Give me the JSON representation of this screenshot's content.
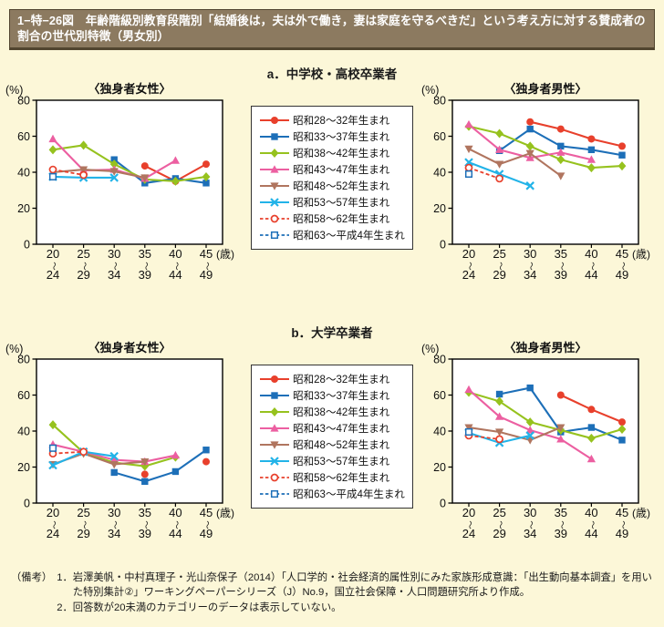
{
  "title": "1−特−26図　年齢階級別教育段階別「結婚後は，夫は外で働き，妻は家庭を守るべきだ」という考え方に対する賛成者の割合の世代別特徴（男女別）",
  "sections": [
    {
      "header": "a．中学校・高校卒業者"
    },
    {
      "header": "b．大学卒業者"
    }
  ],
  "legend": {
    "entries": [
      {
        "label": "昭和28〜32年生まれ",
        "color": "#e8402c",
        "marker": "circle",
        "dashed": false
      },
      {
        "label": "昭和33〜37年生まれ",
        "color": "#1d6fb8",
        "marker": "square",
        "dashed": false
      },
      {
        "label": "昭和38〜42年生まれ",
        "color": "#96c21e",
        "marker": "diamond",
        "dashed": false
      },
      {
        "label": "昭和43〜47年生まれ",
        "color": "#ec5fa1",
        "marker": "triangle-up",
        "dashed": false
      },
      {
        "label": "昭和48〜52年生まれ",
        "color": "#b0755f",
        "marker": "triangle-down",
        "dashed": false
      },
      {
        "label": "昭和53〜57年生まれ",
        "color": "#22b3e8",
        "marker": "x",
        "dashed": false
      },
      {
        "label": "昭和58〜62年生まれ",
        "color": "#e8402c",
        "marker": "circle-open",
        "dashed": true
      },
      {
        "label": "昭和63〜平成4年生まれ",
        "color": "#1d6fb8",
        "marker": "square-open",
        "dashed": true
      }
    ]
  },
  "axis": {
    "percent_label": "(%)",
    "age_unit": "(歳)",
    "yticks": [
      0,
      20,
      40,
      60,
      80
    ],
    "ylim": [
      0,
      80
    ]
  },
  "chart_data": [
    {
      "type": "line",
      "title": "〈独身者女性〉",
      "section": "a．中学校・高校卒業者",
      "ylabel": "(%)",
      "ylim": [
        0,
        80
      ],
      "yticks": [
        0,
        20,
        40,
        60,
        80
      ],
      "categories": [
        "20〜24",
        "25〜29",
        "30〜34",
        "35〜39",
        "40〜44",
        "45〜49"
      ],
      "series": [
        {
          "name": "昭和28〜32年生まれ",
          "values": [
            null,
            null,
            null,
            43.5,
            35,
            44.5
          ]
        },
        {
          "name": "昭和33〜37年生まれ",
          "values": [
            null,
            null,
            47,
            34,
            36.5,
            34
          ]
        },
        {
          "name": "昭和38〜42年生まれ",
          "values": [
            52.5,
            55,
            44.5,
            36,
            35,
            37.5
          ]
        },
        {
          "name": "昭和43〜47年生まれ",
          "values": [
            58.5,
            41,
            41.5,
            36.5,
            46.5,
            null
          ]
        },
        {
          "name": "昭和48〜52年生まれ",
          "values": [
            40,
            41.5,
            40.5,
            37,
            null,
            null
          ]
        },
        {
          "name": "昭和53〜57年生まれ",
          "values": [
            37.5,
            37,
            37,
            null,
            null,
            null
          ]
        },
        {
          "name": "昭和58〜62年生まれ",
          "values": [
            41.5,
            38.5,
            null,
            null,
            null,
            null
          ]
        },
        {
          "name": "昭和63〜平成4年生まれ",
          "values": [
            37.5,
            null,
            null,
            null,
            null,
            null
          ]
        }
      ]
    },
    {
      "type": "line",
      "title": "〈独身者男性〉",
      "section": "a．中学校・高校卒業者",
      "ylabel": "(%)",
      "ylim": [
        0,
        80
      ],
      "yticks": [
        0,
        20,
        40,
        60,
        80
      ],
      "categories": [
        "20〜24",
        "25〜29",
        "30〜34",
        "35〜39",
        "40〜44",
        "45〜49"
      ],
      "series": [
        {
          "name": "昭和28〜32年生まれ",
          "values": [
            null,
            null,
            68,
            64,
            58.5,
            54.5
          ]
        },
        {
          "name": "昭和33〜37年生まれ",
          "values": [
            null,
            52,
            64,
            54.5,
            52.5,
            49.5
          ]
        },
        {
          "name": "昭和38〜42年生まれ",
          "values": [
            65.5,
            61.5,
            54.5,
            47,
            42.5,
            43.5
          ]
        },
        {
          "name": "昭和43〜47年生まれ",
          "values": [
            66.5,
            52.5,
            48,
            51,
            47,
            null
          ]
        },
        {
          "name": "昭和48〜52年生まれ",
          "values": [
            53,
            44.5,
            50.5,
            38,
            null,
            null
          ]
        },
        {
          "name": "昭和53〜57年生まれ",
          "values": [
            45.5,
            39,
            32.5,
            null,
            null,
            null
          ]
        },
        {
          "name": "昭和58〜62年生まれ",
          "values": [
            42.5,
            36.5,
            null,
            null,
            null,
            null
          ]
        },
        {
          "name": "昭和63〜平成4年生まれ",
          "values": [
            39,
            null,
            null,
            null,
            null,
            null
          ]
        }
      ]
    },
    {
      "type": "line",
      "title": "〈独身者女性〉",
      "section": "b．大学卒業者",
      "ylabel": "(%)",
      "ylim": [
        0,
        80
      ],
      "yticks": [
        0,
        20,
        40,
        60,
        80
      ],
      "categories": [
        "20〜24",
        "25〜29",
        "30〜34",
        "35〜39",
        "40〜44",
        "45〜49"
      ],
      "series": [
        {
          "name": "昭和28〜32年生まれ",
          "values": [
            null,
            null,
            null,
            16,
            null,
            23
          ]
        },
        {
          "name": "昭和33〜37年生まれ",
          "values": [
            null,
            null,
            17,
            12,
            17.5,
            29.5
          ]
        },
        {
          "name": "昭和38〜42年生まれ",
          "values": [
            43.5,
            28,
            22.5,
            20.5,
            25.5,
            null
          ]
        },
        {
          "name": "昭和43〜47年生まれ",
          "values": [
            32.5,
            28.5,
            24,
            23,
            26.5,
            null
          ]
        },
        {
          "name": "昭和48〜52年生まれ",
          "values": [
            21.5,
            27.5,
            21.5,
            23,
            null,
            null
          ]
        },
        {
          "name": "昭和53〜57年生まれ",
          "values": [
            21,
            28.5,
            26,
            null,
            null,
            null
          ]
        },
        {
          "name": "昭和58〜62年生まれ",
          "values": [
            27.5,
            28.5,
            null,
            null,
            null,
            null
          ]
        },
        {
          "name": "昭和63〜平成4年生まれ",
          "values": [
            30.5,
            null,
            null,
            null,
            null,
            null
          ]
        }
      ]
    },
    {
      "type": "line",
      "title": "〈独身者男性〉",
      "section": "b．大学卒業者",
      "ylabel": "(%)",
      "ylim": [
        0,
        80
      ],
      "yticks": [
        0,
        20,
        40,
        60,
        80
      ],
      "categories": [
        "20〜24",
        "25〜29",
        "30〜34",
        "35〜39",
        "40〜44",
        "45〜49"
      ],
      "series": [
        {
          "name": "昭和28〜32年生まれ",
          "values": [
            null,
            null,
            null,
            60,
            52,
            45
          ]
        },
        {
          "name": "昭和33〜37年生まれ",
          "values": [
            null,
            60.5,
            64,
            39.5,
            42,
            35
          ]
        },
        {
          "name": "昭和38〜42年生まれ",
          "values": [
            61.5,
            56.5,
            45,
            40.5,
            36,
            41
          ]
        },
        {
          "name": "昭和43〜47年生まれ",
          "values": [
            63,
            48,
            40.5,
            35.5,
            24.5,
            null
          ]
        },
        {
          "name": "昭和48〜52年生まれ",
          "values": [
            42,
            39.5,
            35,
            42,
            null,
            null
          ]
        },
        {
          "name": "昭和53〜57年生まれ",
          "values": [
            39,
            33.5,
            37.5,
            null,
            null,
            null
          ]
        },
        {
          "name": "昭和58〜62年生まれ",
          "values": [
            37.5,
            35.5,
            null,
            null,
            null,
            null
          ]
        },
        {
          "name": "昭和63〜平成4年生まれ",
          "values": [
            39.5,
            null,
            null,
            null,
            null,
            null
          ]
        }
      ]
    }
  ],
  "notes": {
    "label": "（備考）",
    "items": [
      "1．岩澤美帆・中村真理子・光山奈保子（2014）「人口学的・社会経済的属性別にみた家族形成意識：「出生動向基本調査」を用いた特別集計②」ワーキングペーパーシリーズ（J）No.9，国立社会保障・人口問題研究所より作成。",
      "2．回答数が20未満のカテゴリーのデータは表示していない。"
    ]
  },
  "colors": {
    "page_background": "#fcf7d8",
    "title_bar_background": "#8c7a60",
    "title_bar_border": "#51452f",
    "plot_background": "#ffffff",
    "plot_border": "#000000"
  }
}
